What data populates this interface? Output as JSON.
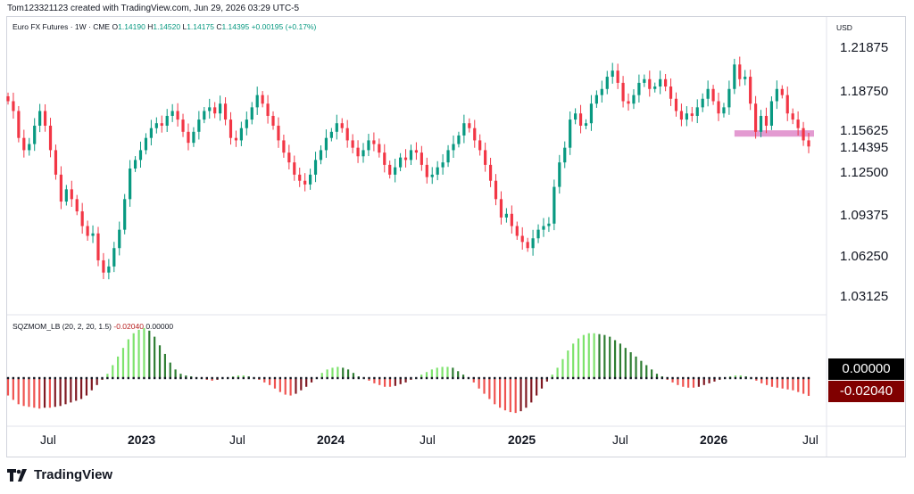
{
  "header": {
    "credit": "Tom123321123 created with TradingView.com, Jun 29, 2026 03:29 UTC-5"
  },
  "legend": {
    "symbol": "Euro FX Futures · 1W · CME",
    "o_label": "O",
    "o": "1.14190",
    "h_label": "H",
    "h": "1.14520",
    "l_label": "L",
    "l": "1.14175",
    "c_label": "C",
    "c": "1.14395",
    "change": "+0.00195 (+0.17%)"
  },
  "indicator": {
    "name": "SQZMOM_LB (20, 2, 20, 1.5)",
    "value": "-0.02040",
    "zero": "0.00000"
  },
  "price_axis": {
    "currency": "USD",
    "labels": [
      "1.21875",
      "1.18750",
      "1.15625",
      "1.12500",
      "1.09375",
      "1.06250",
      "1.03125"
    ],
    "current": "1.14395"
  },
  "ind_axis": {
    "zero_tag": "0.00000",
    "value_tag": "-0.02040"
  },
  "time_axis": [
    {
      "text": "Jul",
      "bold": false
    },
    {
      "text": "2023",
      "bold": true
    },
    {
      "text": "Jul",
      "bold": false
    },
    {
      "text": "2024",
      "bold": true
    },
    {
      "text": "Jul",
      "bold": false
    },
    {
      "text": "2025",
      "bold": true
    },
    {
      "text": "Jul",
      "bold": false
    },
    {
      "text": "2026",
      "bold": true
    },
    {
      "text": "Jul",
      "bold": false
    }
  ],
  "branding": {
    "name": "TradingView"
  },
  "colors": {
    "up": "#089981",
    "down": "#f23645",
    "zone": "#e39ad1",
    "hist_up_strong": "#7ee36d",
    "hist_up_weak": "#2e7d32",
    "hist_down_strong": "#ef5350",
    "hist_down_weak": "#801922"
  },
  "chart_data": {
    "type": "candlestick",
    "ylim": [
      1.015,
      1.235
    ],
    "zone": {
      "from": 1.1525,
      "to": 1.1555
    },
    "series_path": [
      1.18,
      1.172,
      1.15,
      1.14,
      1.145,
      1.16,
      1.172,
      1.16,
      1.14,
      1.12,
      1.098,
      1.108,
      1.1,
      1.09,
      1.078,
      1.07,
      1.072,
      1.05,
      1.04,
      1.045,
      1.06,
      1.075,
      1.1,
      1.125,
      1.132,
      1.14,
      1.15,
      1.158,
      1.162,
      1.16,
      1.168,
      1.172,
      1.165,
      1.155,
      1.146,
      1.155,
      1.165,
      1.172,
      1.175,
      1.17,
      1.178,
      1.165,
      1.15,
      1.148,
      1.158,
      1.165,
      1.175,
      1.185,
      1.178,
      1.168,
      1.16,
      1.148,
      1.138,
      1.13,
      1.12,
      1.115,
      1.112,
      1.12,
      1.132,
      1.14,
      1.15,
      1.155,
      1.162,
      1.158,
      1.148,
      1.142,
      1.135,
      1.14,
      1.148,
      1.145,
      1.138,
      1.128,
      1.12,
      1.126,
      1.134,
      1.132,
      1.14,
      1.138,
      1.128,
      1.118,
      1.12,
      1.126,
      1.13,
      1.14,
      1.145,
      1.152,
      1.162,
      1.158,
      1.148,
      1.14,
      1.128,
      1.115,
      1.1,
      1.085,
      1.088,
      1.078,
      1.07,
      1.065,
      1.06,
      1.068,
      1.075,
      1.078,
      1.08,
      1.11,
      1.13,
      1.142,
      1.165,
      1.17,
      1.16,
      1.162,
      1.178,
      1.185,
      1.19,
      1.2,
      1.205,
      1.195,
      1.18,
      1.178,
      1.185,
      1.195,
      1.198,
      1.19,
      1.192,
      1.198,
      1.192,
      1.182,
      1.172,
      1.165,
      1.17,
      1.168,
      1.175,
      1.182,
      1.19,
      1.18,
      1.17,
      1.175,
      1.19,
      1.21,
      1.198,
      1.2,
      1.178,
      1.155,
      1.168,
      1.16,
      1.18,
      1.19,
      1.185,
      1.17,
      1.165,
      1.158,
      1.148,
      1.143
    ],
    "hist_path": [
      -0.02,
      -0.025,
      -0.03,
      -0.032,
      -0.033,
      -0.034,
      -0.035,
      -0.034,
      -0.034,
      -0.033,
      -0.032,
      -0.03,
      -0.028,
      -0.026,
      -0.024,
      -0.02,
      -0.014,
      -0.008,
      -0.002,
      0.005,
      0.015,
      0.025,
      0.035,
      0.045,
      0.052,
      0.056,
      0.058,
      0.055,
      0.048,
      0.038,
      0.028,
      0.018,
      0.01,
      0.005,
      0.003,
      0.002,
      0.001,
      -0.001,
      -0.002,
      -0.003,
      -0.002,
      0.0,
      0.001,
      0.002,
      0.003,
      0.003,
      0.002,
      0.0,
      -0.002,
      -0.005,
      -0.008,
      -0.012,
      -0.016,
      -0.019,
      -0.02,
      -0.018,
      -0.014,
      -0.01,
      -0.005,
      0.0,
      0.006,
      0.01,
      0.012,
      0.013,
      0.012,
      0.01,
      0.006,
      0.002,
      0.0,
      -0.003,
      -0.006,
      -0.008,
      -0.01,
      -0.01,
      -0.009,
      -0.007,
      -0.005,
      -0.002,
      0.0,
      0.004,
      0.007,
      0.01,
      0.012,
      0.013,
      0.013,
      0.012,
      0.008,
      0.004,
      0.0,
      -0.005,
      -0.012,
      -0.018,
      -0.024,
      -0.03,
      -0.034,
      -0.037,
      -0.039,
      -0.04,
      -0.038,
      -0.034,
      -0.028,
      -0.02,
      -0.012,
      -0.004,
      0.004,
      0.012,
      0.022,
      0.032,
      0.04,
      0.046,
      0.05,
      0.052,
      0.052,
      0.051,
      0.05,
      0.048,
      0.044,
      0.04,
      0.035,
      0.03,
      0.025,
      0.02,
      0.015,
      0.01,
      0.005,
      0.002,
      -0.002,
      -0.005,
      -0.008,
      -0.01,
      -0.011,
      -0.011,
      -0.01,
      -0.008,
      -0.006,
      -0.004,
      -0.002,
      0.0,
      0.002,
      0.003,
      0.003,
      0.002,
      0.0,
      -0.003,
      -0.006,
      -0.008,
      -0.01,
      -0.011,
      -0.012,
      -0.013,
      -0.014,
      -0.016,
      -0.018,
      -0.0204
    ],
    "hist_ylim": [
      -0.045,
      0.06
    ]
  }
}
